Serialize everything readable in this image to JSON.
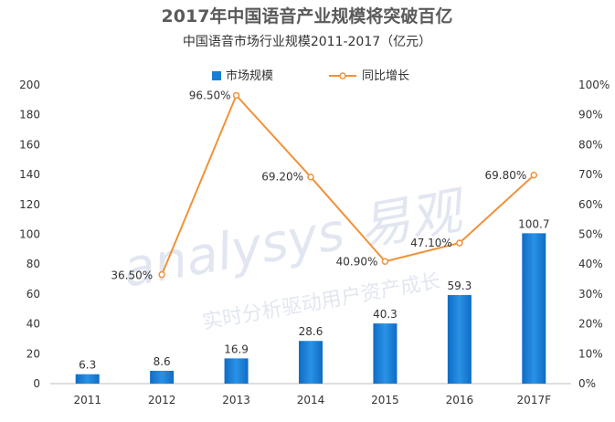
{
  "chart_data": {
    "type": "bar",
    "title": "2017年中国语音产业规模将突破百亿",
    "subtitle": "中国语音市场行业规模2011-2017（亿元）",
    "categories": [
      "2011",
      "2012",
      "2013",
      "2014",
      "2015",
      "2016",
      "2017F"
    ],
    "series": [
      {
        "name": "市场规模",
        "type": "bar",
        "axis": "left",
        "color": "#1a7fd4",
        "values": [
          6.3,
          8.6,
          16.9,
          28.6,
          40.3,
          59.3,
          100.7
        ],
        "labels": [
          "6.3",
          "8.6",
          "16.9",
          "28.6",
          "40.3",
          "59.3",
          "100.7"
        ]
      },
      {
        "name": "同比增长",
        "type": "line",
        "axis": "right",
        "color": "#f0923a",
        "values": [
          null,
          36.5,
          96.5,
          69.2,
          40.9,
          47.1,
          69.8
        ],
        "labels": [
          "",
          "36.50%",
          "96.50%",
          "69.20%",
          "40.90%",
          "47.10%",
          "69.80%"
        ]
      }
    ],
    "y_left": {
      "min": 0,
      "max": 200,
      "step": 20,
      "ticks": [
        "0",
        "20",
        "40",
        "60",
        "80",
        "100",
        "120",
        "140",
        "160",
        "180",
        "200"
      ]
    },
    "y_right": {
      "min": 0,
      "max": 100,
      "step": 10,
      "ticks": [
        "0%",
        "10%",
        "20%",
        "30%",
        "40%",
        "50%",
        "60%",
        "70%",
        "80%",
        "90%",
        "100%"
      ]
    },
    "legend": {
      "position": "top"
    },
    "grid": false
  },
  "watermark": {
    "brand": "analysys 易观",
    "tagline": "实时分析驱动用户资产成长"
  }
}
